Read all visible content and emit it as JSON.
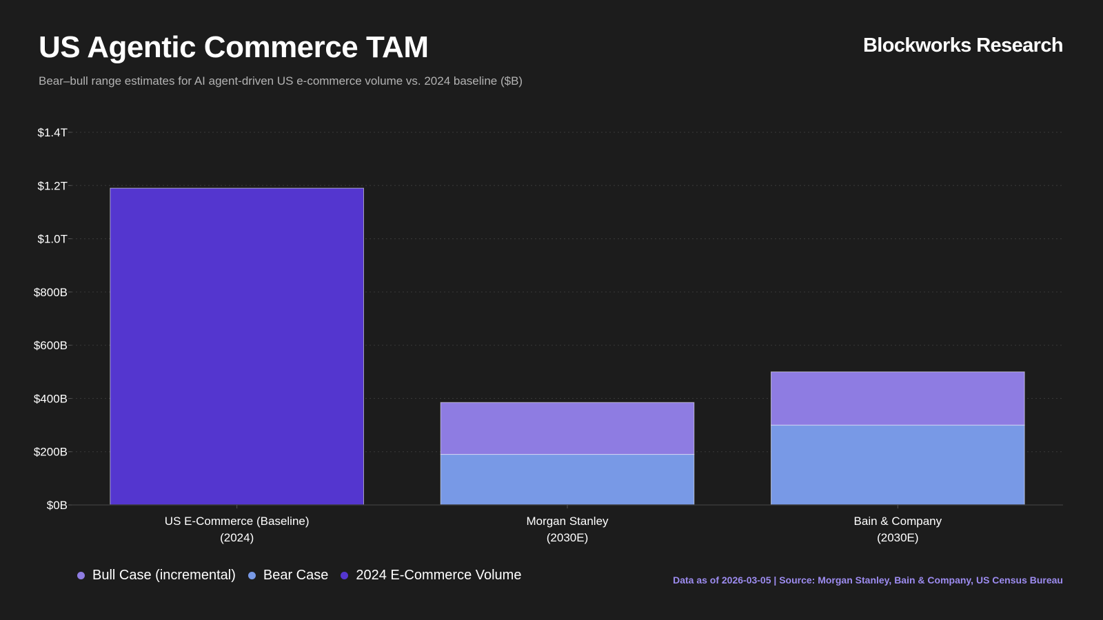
{
  "header": {
    "title": "US Agentic Commerce TAM",
    "subtitle": "Bear–bull range estimates for AI agent-driven US e-commerce volume vs. 2024 baseline ($B)",
    "brand": "Blockworks Research"
  },
  "chart_data": {
    "type": "bar",
    "stacked": true,
    "title": "US Agentic Commerce TAM",
    "xlabel": "",
    "ylabel": "",
    "ylim": [
      0,
      1400
    ],
    "yticks": [
      {
        "value": 0,
        "label": "$0B"
      },
      {
        "value": 200,
        "label": "$200B"
      },
      {
        "value": 400,
        "label": "$400B"
      },
      {
        "value": 600,
        "label": "$600B"
      },
      {
        "value": 800,
        "label": "$800B"
      },
      {
        "value": 1000,
        "label": "$1.0T"
      },
      {
        "value": 1200,
        "label": "$1.2T"
      },
      {
        "value": 1400,
        "label": "$1.4T"
      }
    ],
    "grid": true,
    "categories": [
      [
        "US E-Commerce (Baseline)",
        "(2024)"
      ],
      [
        "Morgan Stanley",
        "(2030E)"
      ],
      [
        "Bain & Company",
        "(2030E)"
      ]
    ],
    "series": [
      {
        "name": "2024 E-Commerce Volume",
        "color": "#5436cf",
        "values": [
          1190,
          0,
          0
        ]
      },
      {
        "name": "Bear Case",
        "color": "#7899e6",
        "values": [
          0,
          190,
          300
        ]
      },
      {
        "name": "Bull Case (incremental)",
        "color": "#8e7ce2",
        "values": [
          0,
          195,
          200
        ]
      }
    ]
  },
  "legend": {
    "items": [
      {
        "label": "Bull Case (incremental)",
        "color": "#8e7ce2"
      },
      {
        "label": "Bear Case",
        "color": "#7899e6"
      },
      {
        "label": "2024 E-Commerce Volume",
        "color": "#5436cf"
      }
    ]
  },
  "footer": {
    "source": "Data as of 2026-03-05 | Source: Morgan Stanley, Bain & Company, US Census Bureau"
  }
}
